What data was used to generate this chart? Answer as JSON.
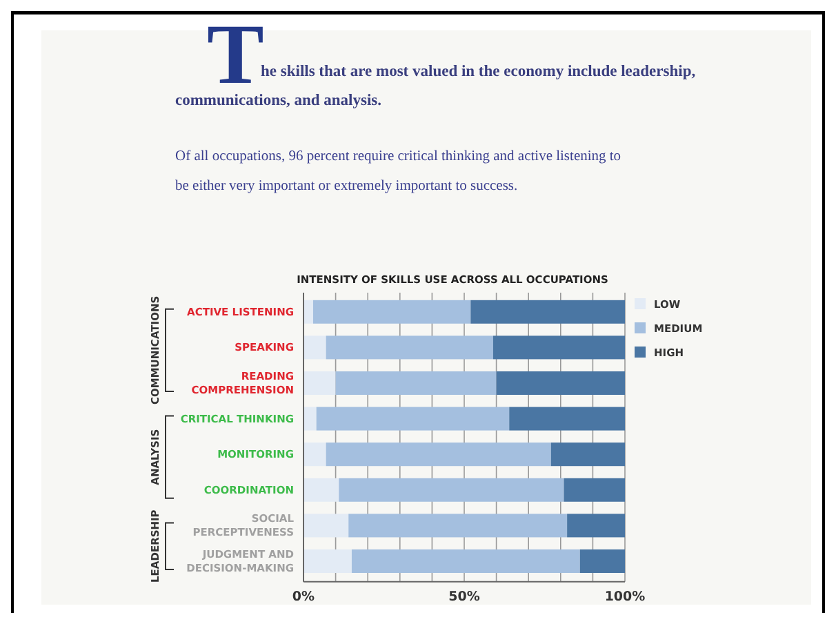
{
  "chart_data": {
    "type": "bar",
    "orientation": "horizontal",
    "stacked": true,
    "title": "INTENSITY OF SKILLS USE ACROSS ALL OCCUPATIONS",
    "categories": [
      "ACTIVE LISTENING",
      "SPEAKING",
      "READING COMPREHENSION",
      "CRITICAL THINKING",
      "MONITORING",
      "COORDINATION",
      "SOCIAL PERCEPTIVENESS",
      "JUDGMENT AND DECISION-MAKING"
    ],
    "series": [
      {
        "name": "LOW",
        "color": "#e3ebf5",
        "values": [
          3,
          7,
          10,
          4,
          7,
          11,
          14,
          15
        ]
      },
      {
        "name": "MEDIUM",
        "color": "#a4bfdf",
        "values": [
          49,
          52,
          50,
          60,
          70,
          70,
          68,
          71
        ]
      },
      {
        "name": "HIGH",
        "color": "#4a76a3",
        "values": [
          48,
          41,
          40,
          36,
          23,
          19,
          18,
          14
        ]
      }
    ],
    "xlim": [
      0,
      100
    ],
    "xticks": [
      {
        "value": 0,
        "label": "0%"
      },
      {
        "value": 10,
        "label": null
      },
      {
        "value": 20,
        "label": null
      },
      {
        "value": 30,
        "label": null
      },
      {
        "value": 40,
        "label": null
      },
      {
        "value": 50,
        "label": "50%"
      },
      {
        "value": 60,
        "label": null
      },
      {
        "value": 70,
        "label": null
      },
      {
        "value": 80,
        "label": null
      },
      {
        "value": 90,
        "label": null
      },
      {
        "value": 100,
        "label": "100%"
      }
    ],
    "grid": "x",
    "legend": "top right",
    "annotations": [
      "The skills that are most valued in the economy include leadership, communications, and analysis.",
      "Of all occupations, 96 percent require critical thinking and active listening to be either very important or extremely important to success.",
      "COMMUNICATIONS",
      "ANALYSIS",
      "LEADERSHIP"
    ]
  }
}
